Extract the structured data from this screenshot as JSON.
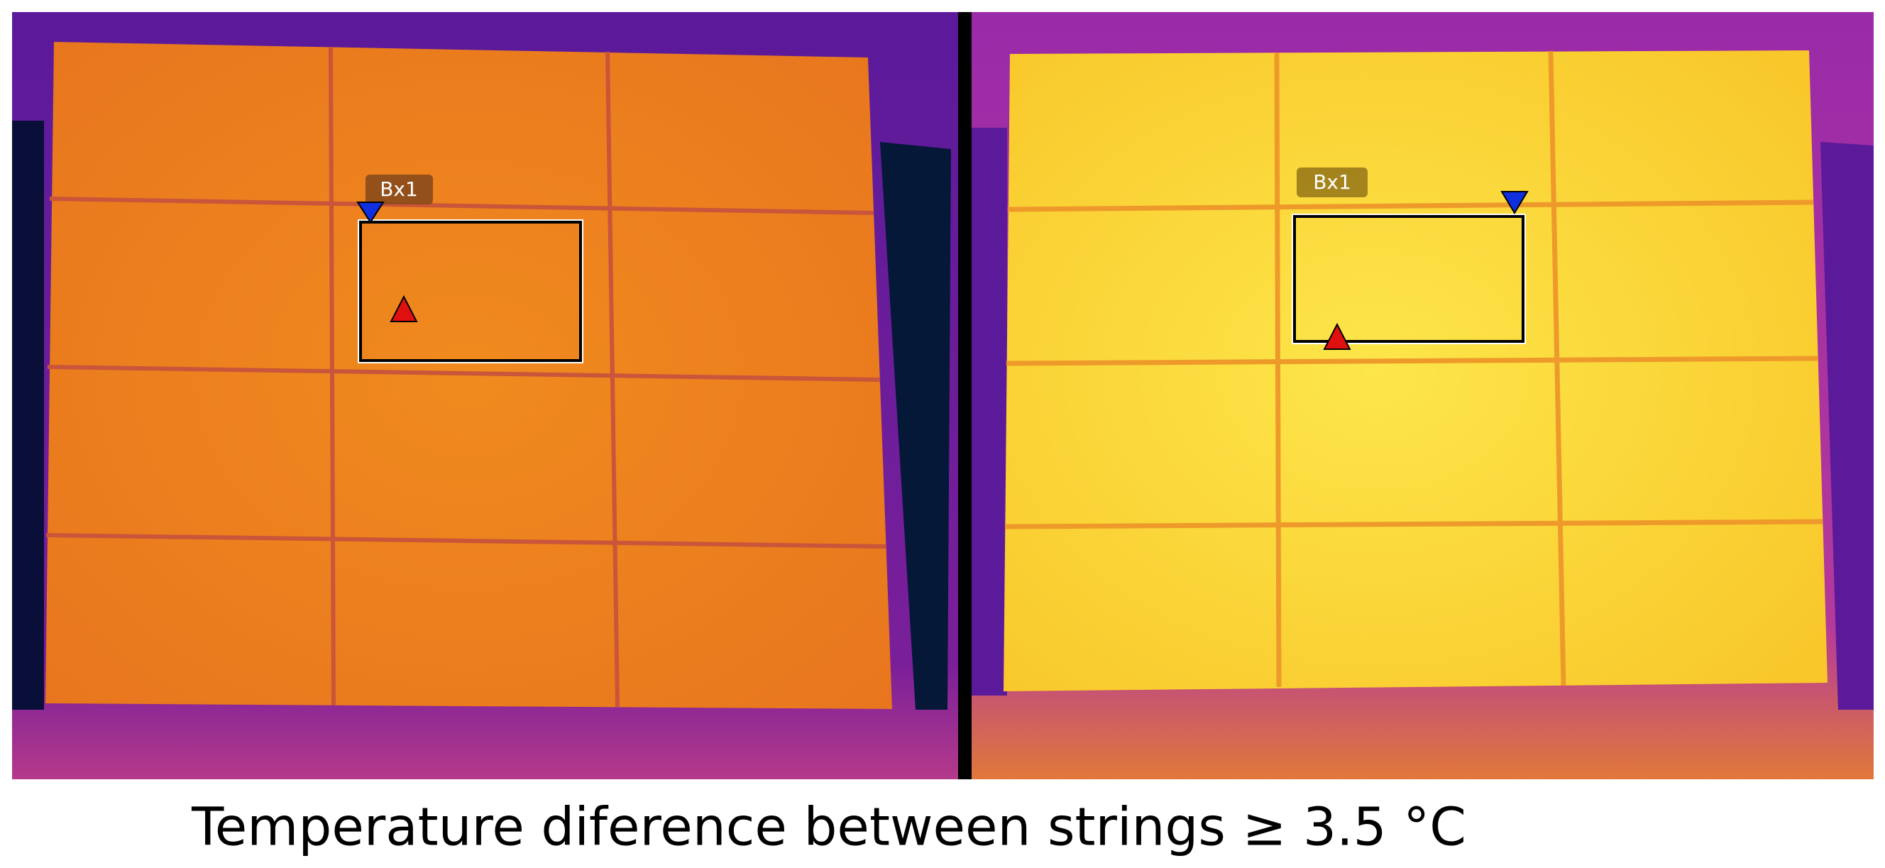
{
  "images": [
    {
      "label": "Bx1"
    },
    {
      "label": "Bx1"
    }
  ],
  "caption": "Temperature diference between strings ≥ 3.5 °C"
}
